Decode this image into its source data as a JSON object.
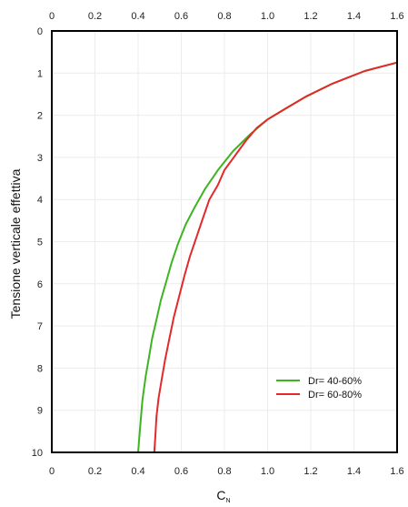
{
  "chart_data": {
    "type": "line",
    "xlabel": "C",
    "xlabel_subscript": "N",
    "ylabel": "Tensione verticale effettiva",
    "xlim": [
      0,
      1.6
    ],
    "ylim": [
      0,
      10
    ],
    "y_inverted": true,
    "x_ticks": [
      "0",
      "0.2",
      "0.4",
      "0.6",
      "0.8",
      "1.0",
      "1.2",
      "1.4",
      "1.6"
    ],
    "y_ticks": [
      "0",
      "1",
      "2",
      "3",
      "4",
      "5",
      "6",
      "7",
      "8",
      "9",
      "10"
    ],
    "x_ticks_top_and_bottom": true,
    "grid": true,
    "legend_position": "bottom-right",
    "series": [
      {
        "name": "Dr= 40-60%",
        "color": "#3cb521",
        "x": [
          1.6,
          1.45,
          1.3,
          1.18,
          1.08,
          1.0,
          0.92,
          0.84,
          0.77,
          0.71,
          0.66,
          0.62,
          0.585,
          0.555,
          0.53,
          0.505,
          0.485,
          0.465,
          0.45,
          0.435,
          0.42,
          0.41,
          0.4
        ],
        "y": [
          0.75,
          0.95,
          1.25,
          1.55,
          1.85,
          2.1,
          2.45,
          2.85,
          3.3,
          3.75,
          4.2,
          4.6,
          5.05,
          5.5,
          5.95,
          6.4,
          6.85,
          7.3,
          7.75,
          8.2,
          8.75,
          9.35,
          10.0
        ]
      },
      {
        "name": "Dr= 60-80%",
        "color": "#e32929",
        "x": [
          1.6,
          1.45,
          1.3,
          1.18,
          1.08,
          1.0,
          0.95,
          0.9,
          0.85,
          0.8,
          0.77,
          0.73,
          0.7,
          0.67,
          0.64,
          0.615,
          0.59,
          0.565,
          0.545,
          0.525,
          0.51,
          0.495,
          0.485,
          0.48,
          0.475
        ],
        "y": [
          0.75,
          0.95,
          1.25,
          1.55,
          1.85,
          2.1,
          2.3,
          2.6,
          2.95,
          3.3,
          3.65,
          4.0,
          4.45,
          4.9,
          5.35,
          5.8,
          6.3,
          6.8,
          7.3,
          7.8,
          8.25,
          8.7,
          9.15,
          9.6,
          10.0
        ]
      }
    ]
  }
}
